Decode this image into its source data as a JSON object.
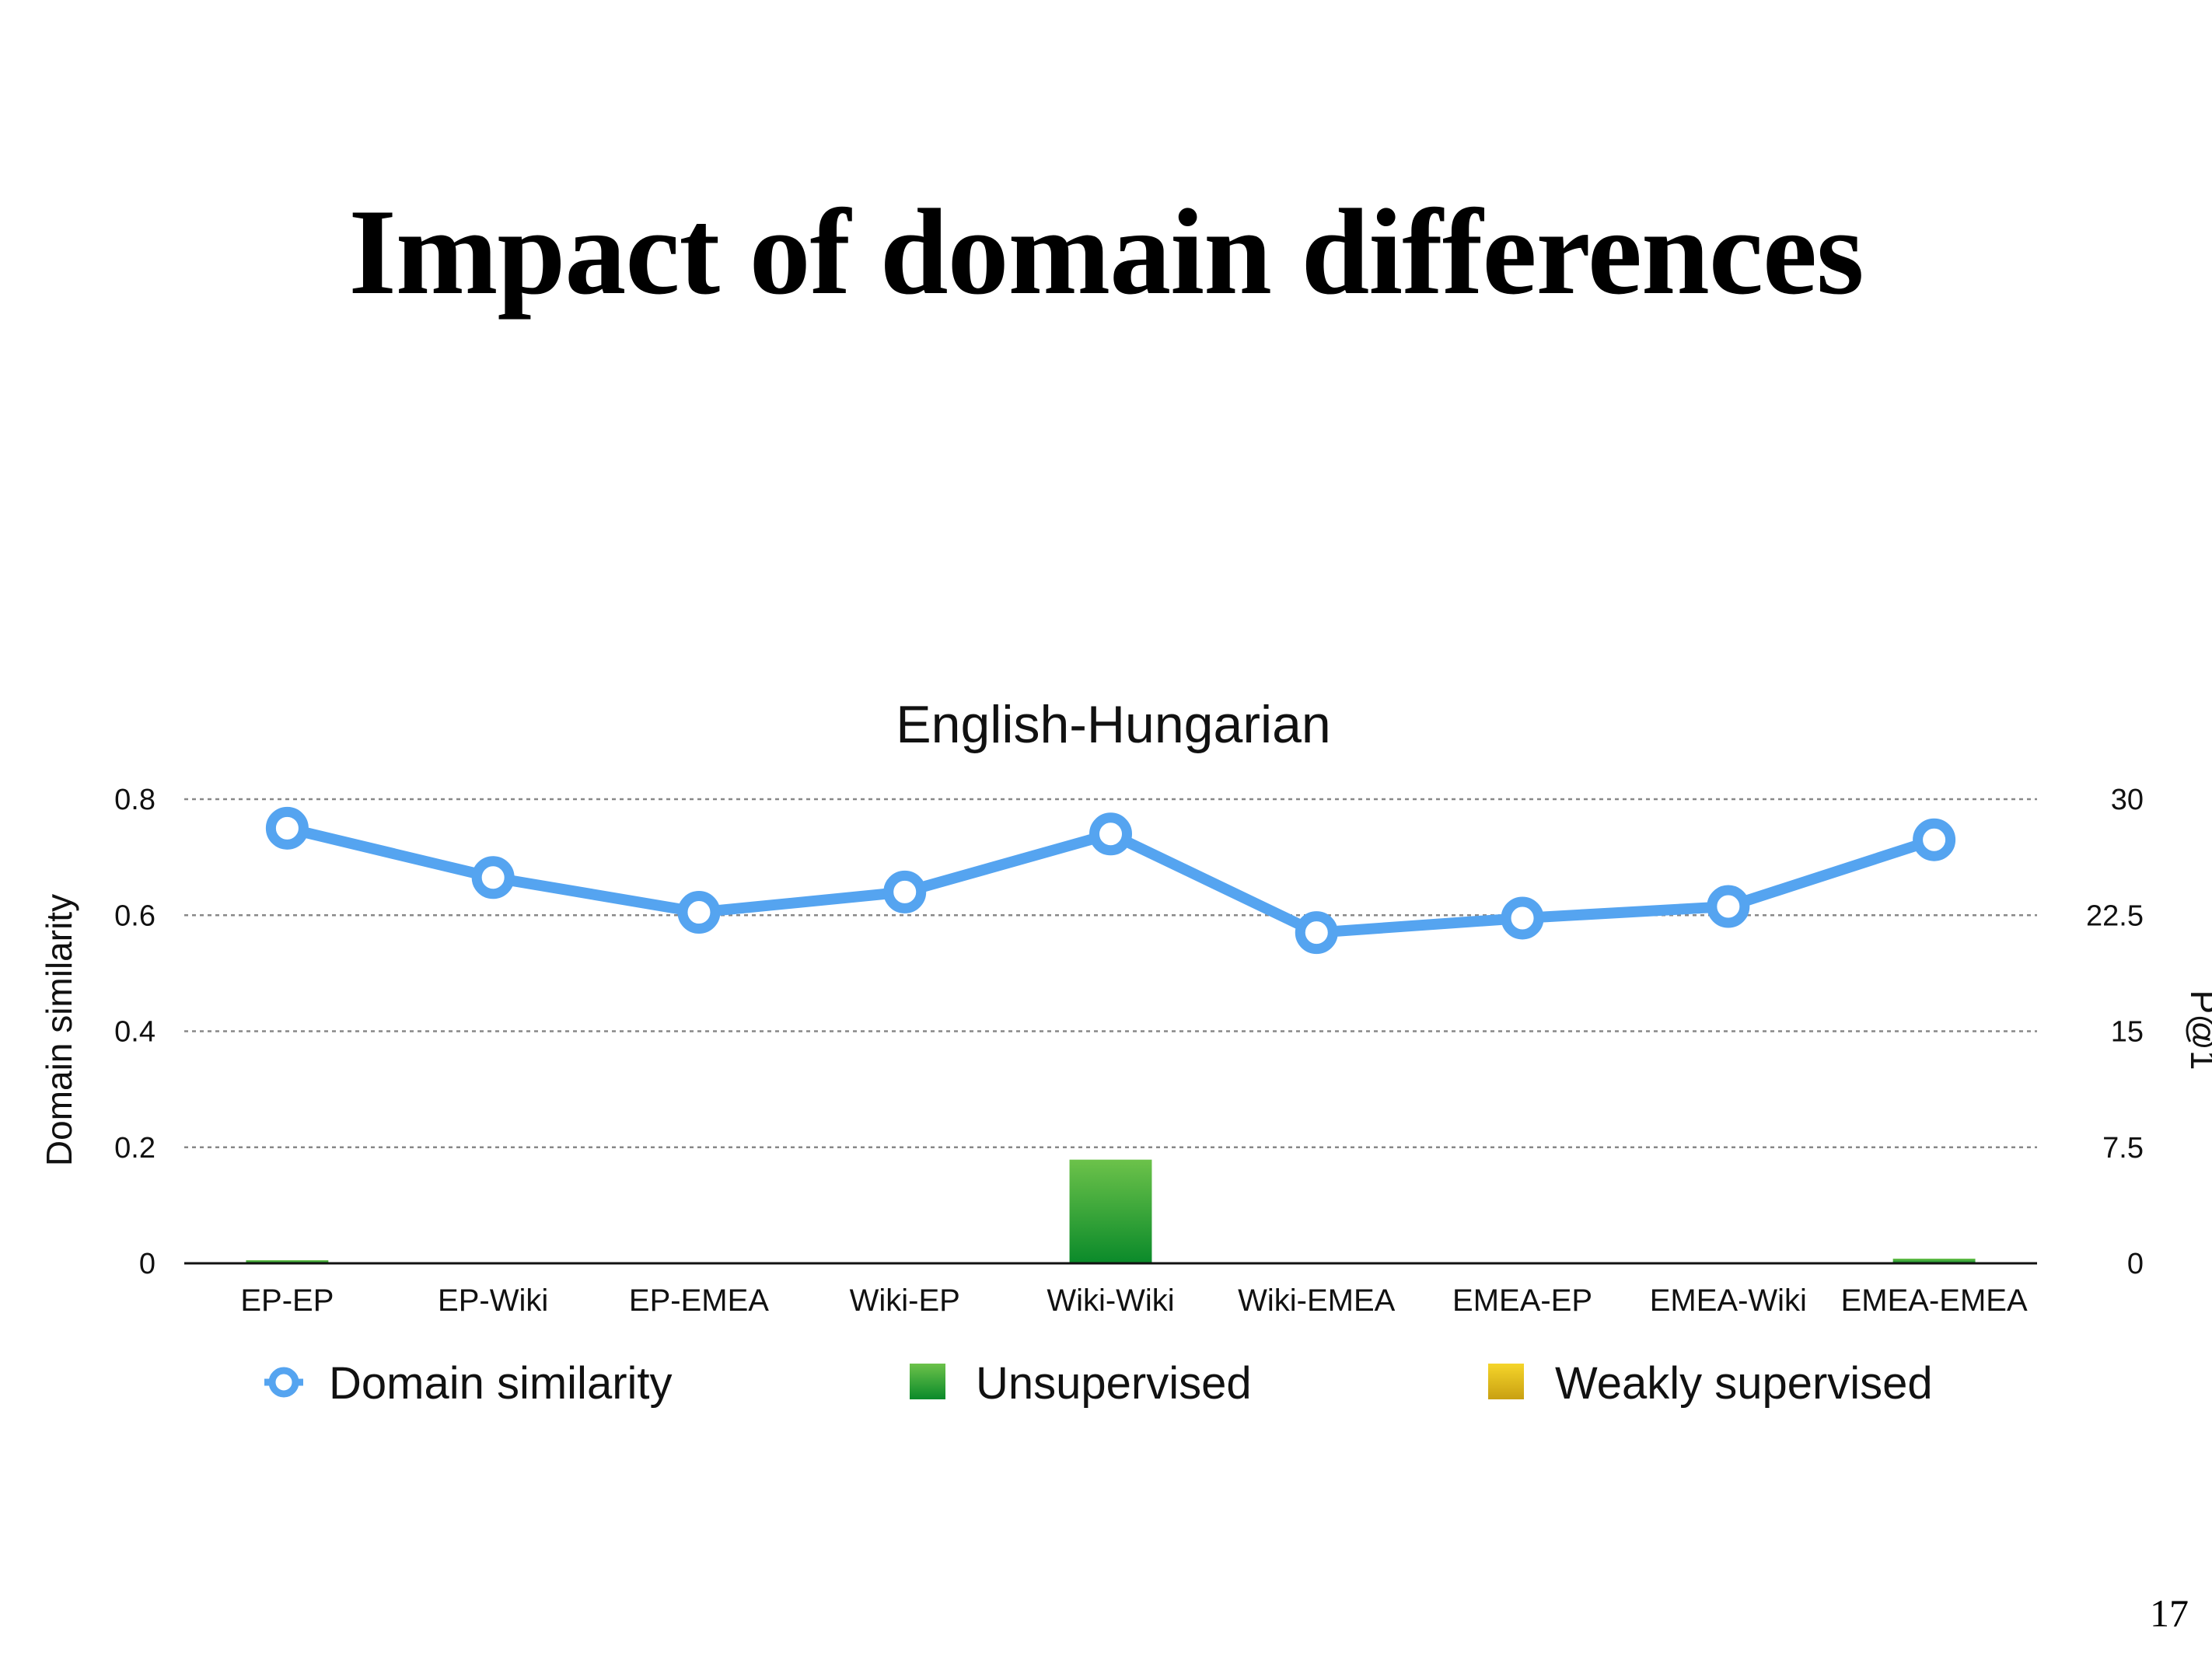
{
  "slide": {
    "title": "Impact of domain differences",
    "page_number": "17"
  },
  "colors": {
    "line": "#55a4f0",
    "unsupervised_top": "#6cc24a",
    "unsupervised_bottom": "#0a8a2a",
    "weakly_top": "#f5d52a",
    "weakly_bottom": "#c9a012",
    "grid": "#888888",
    "axis": "#111111"
  },
  "chart_data": {
    "type": "bar",
    "title": "English-Hungarian",
    "ylabel": "Domain similarity",
    "y2label": "P@1",
    "ylim": [
      0,
      0.8
    ],
    "y2lim": [
      0,
      30
    ],
    "yticks": [
      "0",
      "0.2",
      "0.4",
      "0.6",
      "0.8"
    ],
    "y2ticks": [
      "0",
      "7.5",
      "15",
      "22.5",
      "30"
    ],
    "grid": true,
    "legend_position": "bottom",
    "categories": [
      "EP-EP",
      "EP-Wiki",
      "EP-EMEA",
      "Wiki-EP",
      "Wiki-Wiki",
      "Wiki-EMEA",
      "EMEA-EP",
      "EMEA-Wiki",
      "EMEA-EMEA"
    ],
    "series": [
      {
        "name": "Domain similarity",
        "type": "line",
        "axis": "left",
        "values": [
          0.75,
          0.665,
          0.605,
          0.64,
          0.74,
          0.57,
          0.595,
          0.615,
          0.73
        ]
      },
      {
        "name": "Unsupervised",
        "type": "bar",
        "axis": "right",
        "values": [
          0.2,
          0,
          0,
          0,
          6.7,
          0,
          0,
          0,
          0.3
        ]
      },
      {
        "name": "Weakly supervised",
        "type": "bar",
        "axis": "right",
        "values": [
          0,
          0,
          0,
          0,
          0,
          0,
          0,
          0,
          0
        ]
      }
    ]
  }
}
